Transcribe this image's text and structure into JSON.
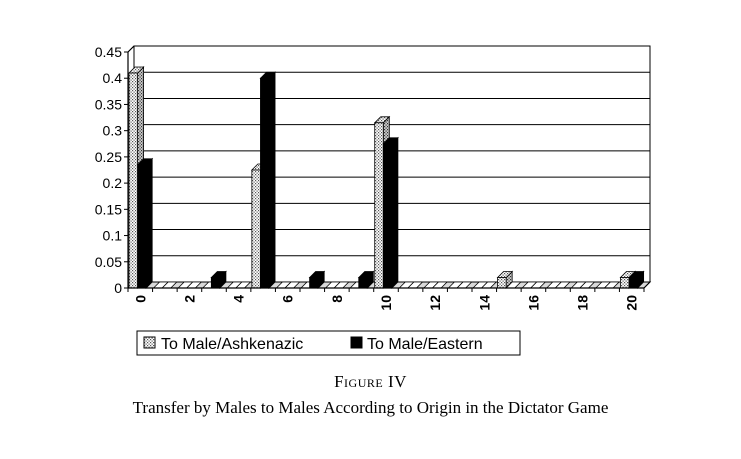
{
  "chart_data": {
    "type": "bar",
    "style": "3d-clustered",
    "x": [
      0,
      1,
      2,
      3,
      4,
      5,
      6,
      7,
      8,
      9,
      10,
      11,
      12,
      13,
      14,
      15,
      16,
      17,
      18,
      19,
      20
    ],
    "x_tick_labels": [
      "0",
      "2",
      "4",
      "6",
      "8",
      "10",
      "12",
      "14",
      "16",
      "18",
      "20"
    ],
    "y_tick_labels": [
      "0",
      "0.05",
      "0.1",
      "0.15",
      "0.2",
      "0.25",
      "0.3",
      "0.35",
      "0.4",
      "0.45"
    ],
    "ylim": [
      0,
      0.45
    ],
    "grid": true,
    "legend_position": "bottom",
    "series": [
      {
        "name": "To Male/Ashkenazic",
        "pattern": "dotted",
        "values": [
          0.41,
          0,
          0,
          0,
          0,
          0.225,
          0,
          0,
          0,
          0,
          0.315,
          0,
          0,
          0,
          0,
          0.02,
          0,
          0,
          0,
          0,
          0.02
        ]
      },
      {
        "name": "To Male/Eastern",
        "pattern": "solid",
        "values": [
          0.235,
          0,
          0,
          0.02,
          0,
          0.4,
          0,
          0.02,
          0,
          0.02,
          0.275,
          0,
          0,
          0,
          0,
          0,
          0,
          0,
          0,
          0,
          0.02
        ]
      }
    ]
  },
  "caption": {
    "figure_label": "Figure IV",
    "title": "Transfer by Males to Males According to Origin in the Dictator Game"
  }
}
